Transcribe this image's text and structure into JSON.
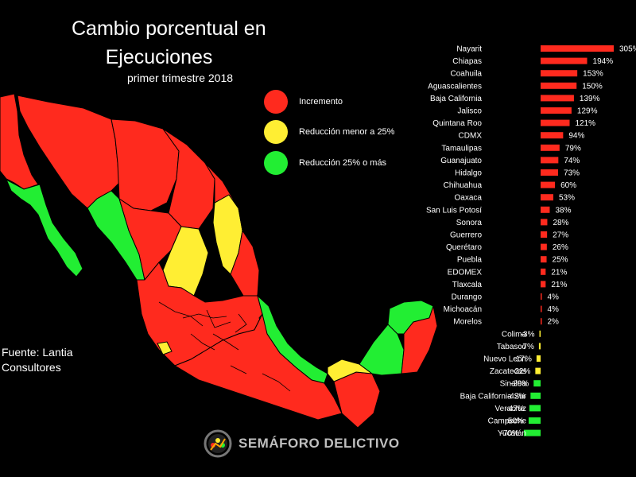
{
  "title_line1": "Cambio porcentual en",
  "title_line2": "Ejecuciones",
  "subtitle": "primer trimestre 2018",
  "legend": [
    {
      "label": "Incremento",
      "color": "#ff2a1e"
    },
    {
      "label": "Reducción menor a 25%",
      "color": "#ffee33"
    },
    {
      "label": "Reducción 25% o más",
      "color": "#22ee33"
    }
  ],
  "source_line1": "Fuente: Lantia",
  "source_line2": "Consultores",
  "brand": "SEMÁFORO DELICTIVO",
  "chart_data": {
    "type": "bar",
    "orientation": "horizontal",
    "categories": [
      "Nayarit",
      "Chiapas",
      "Coahuila",
      "Aguascalientes",
      "Baja California",
      "Jalisco",
      "Quintana Roo",
      "CDMX",
      "Tamaulipas",
      "Guanajuato",
      "Hidalgo",
      "Chihuahua",
      "Oaxaca",
      "San Luis Potosí",
      "Sonora",
      "Guerrero",
      "Querétaro",
      "Puebla",
      "EDOMEX",
      "Tlaxcala",
      "Durango",
      "Michoacán",
      "Morelos",
      "Colima",
      "Tabasco",
      "Nuevo León",
      "Zacatecas",
      "Sinaloa",
      "Baja California Sur",
      "Veracruz",
      "Campeche",
      "Yucatán"
    ],
    "values": [
      305,
      194,
      153,
      150,
      139,
      129,
      121,
      94,
      79,
      74,
      73,
      60,
      53,
      38,
      28,
      27,
      26,
      25,
      21,
      21,
      4,
      4,
      2,
      -3,
      -7,
      -17,
      -22,
      -29,
      -42,
      -47,
      -50,
      -70
    ],
    "value_labels": [
      "305%",
      "194%",
      "153%",
      "150%",
      "139%",
      "129%",
      "121%",
      "94%",
      "79%",
      "74%",
      "73%",
      "60%",
      "53%",
      "38%",
      "28%",
      "27%",
      "26%",
      "25%",
      "21%",
      "21%",
      "4%",
      "4%",
      "2%",
      "-3%",
      "-7%",
      "-17%",
      "-22%",
      "-29%",
      "-42%",
      "-47%",
      "-50%",
      "-70%"
    ],
    "colors": {
      "increase": "#ff2a1e",
      "small_reduction": "#ffee33",
      "large_reduction": "#22ee33"
    },
    "grid": false
  }
}
